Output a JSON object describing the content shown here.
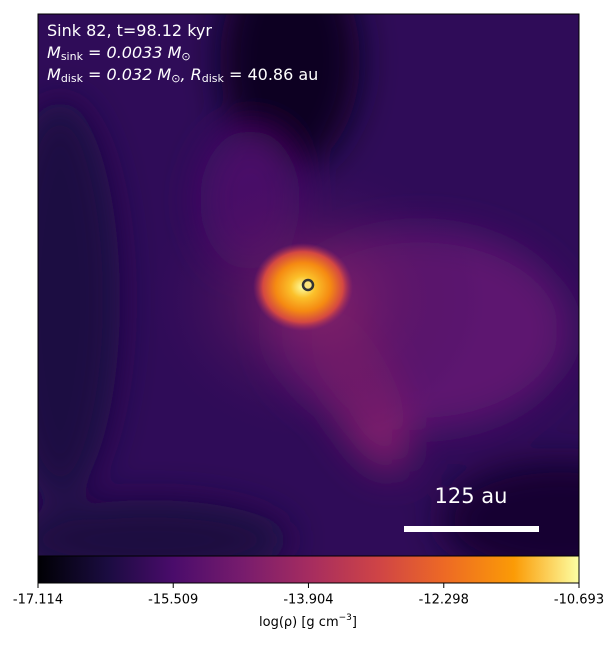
{
  "chart_data": {
    "type": "density-map",
    "annotations": [
      [
        "Sink 82, t=98.12 kyr"
      ],
      [
        "M",
        "sink",
        " = 0.0033 M",
        "⊙"
      ],
      [
        "M",
        "disk",
        " = 0.032 M",
        "⊙",
        ", R",
        "disk",
        " = 40.86 au"
      ]
    ],
    "scale_bar_label": "125 au",
    "colormap": "inferno",
    "clim": [
      -17.114,
      -10.693
    ],
    "cticks": [
      -17.114,
      -15.509,
      -13.904,
      -12.298,
      -10.693
    ],
    "colorbar_label": [
      "log(ρ) [g cm",
      "−3",
      "]"
    ]
  }
}
